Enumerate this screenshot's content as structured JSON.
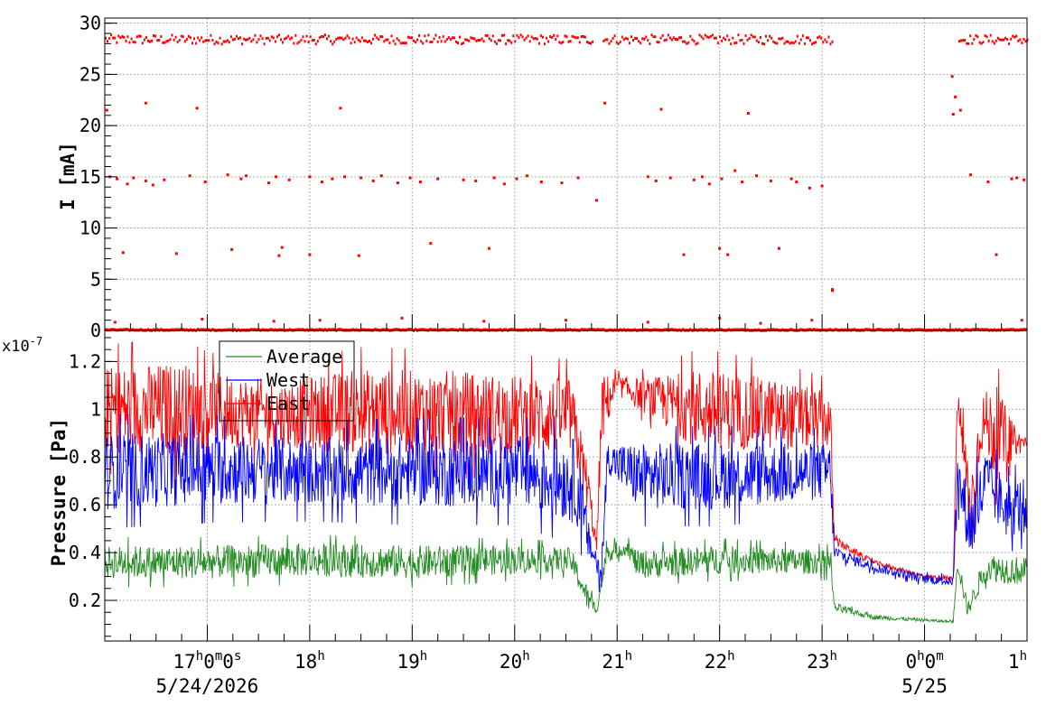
{
  "chart_data": [
    {
      "type": "scatter",
      "title": "",
      "ylabel": "I [mA]",
      "ylim": [
        0,
        30.5
      ],
      "yticks": [
        "0",
        "5",
        "10",
        "15",
        "20",
        "25",
        "30"
      ],
      "grid": true,
      "series": [
        {
          "color": "#ff0000",
          "bands": [
            {
              "level": 28.4,
              "spread": 0.45,
              "segments": [
                [
                  16.0,
                  20.76
                ],
                [
                  20.86,
                  23.1
                ],
                [
                  24.33,
                  25.0
                ]
              ]
            },
            {
              "level": 0.05,
              "spread": 0.05,
              "segments": [
                [
                  16.0,
                  25.0
                ]
              ]
            }
          ],
          "points": [
            [
              16.02,
              21.5
            ],
            [
              16.05,
              15.0
            ],
            [
              16.12,
              14.8
            ],
            [
              16.18,
              7.6
            ],
            [
              16.22,
              14.3
            ],
            [
              16.28,
              14.9
            ],
            [
              16.4,
              14.6
            ],
            [
              16.47,
              14.2
            ],
            [
              16.4,
              22.2
            ],
            [
              16.58,
              14.7
            ],
            [
              16.7,
              7.5
            ],
            [
              16.83,
              15.1
            ],
            [
              16.9,
              21.7
            ],
            [
              16.98,
              14.5
            ],
            [
              17.2,
              15.2
            ],
            [
              17.24,
              7.9
            ],
            [
              17.33,
              14.8
            ],
            [
              17.38,
              15.1
            ],
            [
              17.6,
              14.4
            ],
            [
              17.67,
              15.0
            ],
            [
              17.7,
              7.3
            ],
            [
              17.73,
              8.1
            ],
            [
              17.8,
              14.7
            ],
            [
              18.0,
              7.4
            ],
            [
              18.0,
              15.0
            ],
            [
              18.12,
              14.5
            ],
            [
              18.22,
              14.8
            ],
            [
              18.3,
              21.7
            ],
            [
              18.34,
              15.0
            ],
            [
              18.48,
              7.3
            ],
            [
              18.5,
              14.9
            ],
            [
              18.62,
              14.6
            ],
            [
              18.7,
              15.1
            ],
            [
              18.86,
              14.4
            ],
            [
              18.98,
              14.9
            ],
            [
              19.08,
              14.5
            ],
            [
              19.18,
              8.5
            ],
            [
              19.25,
              14.8
            ],
            [
              19.5,
              14.7
            ],
            [
              19.62,
              14.6
            ],
            [
              19.75,
              8.0
            ],
            [
              19.8,
              14.9
            ],
            [
              19.9,
              14.3
            ],
            [
              20.02,
              14.8
            ],
            [
              20.12,
              15.1
            ],
            [
              20.26,
              14.5
            ],
            [
              20.46,
              14.4
            ],
            [
              20.62,
              14.9
            ],
            [
              20.88,
              22.2
            ],
            [
              20.8,
              12.7
            ],
            [
              21.3,
              15.0
            ],
            [
              21.38,
              14.6
            ],
            [
              21.43,
              21.6
            ],
            [
              21.52,
              14.9
            ],
            [
              21.65,
              7.4
            ],
            [
              21.75,
              14.7
            ],
            [
              21.83,
              15.0
            ],
            [
              21.9,
              14.3
            ],
            [
              22.02,
              14.8
            ],
            [
              22.0,
              8.0
            ],
            [
              22.08,
              7.4
            ],
            [
              22.15,
              15.6
            ],
            [
              22.22,
              14.5
            ],
            [
              22.28,
              21.2
            ],
            [
              22.36,
              15.1
            ],
            [
              22.5,
              14.6
            ],
            [
              22.58,
              8.0
            ],
            [
              22.7,
              14.8
            ],
            [
              22.75,
              14.5
            ],
            [
              22.88,
              13.9
            ],
            [
              23.0,
              14.1
            ],
            [
              23.1,
              4.0
            ],
            [
              23.1,
              3.9
            ],
            [
              24.27,
              24.8
            ],
            [
              24.3,
              22.8
            ],
            [
              24.28,
              21.1
            ],
            [
              24.35,
              21.5
            ],
            [
              24.45,
              15.2
            ],
            [
              24.7,
              7.4
            ],
            [
              24.62,
              14.5
            ],
            [
              24.85,
              14.8
            ],
            [
              24.9,
              14.9
            ],
            [
              24.97,
              14.7
            ],
            [
              16.1,
              0.8
            ],
            [
              16.95,
              1.1
            ],
            [
              17.65,
              0.9
            ],
            [
              18.1,
              1.0
            ],
            [
              18.9,
              1.2
            ],
            [
              19.7,
              0.9
            ],
            [
              20.5,
              1.0
            ],
            [
              21.3,
              0.8
            ],
            [
              22.0,
              1.2
            ],
            [
              22.4,
              0.7
            ],
            [
              22.9,
              1.0
            ],
            [
              24.95,
              1.0
            ]
          ]
        }
      ]
    },
    {
      "type": "line",
      "title": "",
      "ylabel": "Pressure [Pa]",
      "ylim": [
        0.03,
        1.33
      ],
      "y_multiplier": "x10",
      "y_exponent": "-7",
      "yticks": [
        "0.2",
        "0.4",
        "0.6",
        "0.8",
        "1",
        "1.2"
      ],
      "grid": true,
      "legend": "top-left",
      "series": [
        {
          "name": "East",
          "color": "#ff0000",
          "anchors": [
            [
              16.0,
              1.0,
              0.18
            ],
            [
              16.75,
              1.0,
              0.2
            ],
            [
              17.0,
              1.0,
              0.16
            ],
            [
              17.7,
              0.98,
              0.14
            ],
            [
              18.5,
              0.99,
              0.18
            ],
            [
              19.5,
              0.98,
              0.18
            ],
            [
              20.55,
              0.97,
              0.16
            ],
            [
              20.72,
              0.66,
              0.1
            ],
            [
              20.8,
              0.42,
              0.03
            ],
            [
              20.85,
              1.0,
              0.15
            ],
            [
              21.0,
              1.1,
              0.04
            ],
            [
              21.3,
              1.05,
              0.08
            ],
            [
              21.8,
              1.0,
              0.17
            ],
            [
              22.5,
              0.98,
              0.15
            ],
            [
              23.08,
              0.95,
              0.12
            ],
            [
              23.12,
              0.45,
              0.02
            ],
            [
              23.5,
              0.36,
              0.01
            ],
            [
              24.0,
              0.3,
              0.01
            ],
            [
              24.28,
              0.29,
              0.01
            ],
            [
              24.32,
              1.05,
              0.06
            ],
            [
              24.45,
              0.56,
              0.18
            ],
            [
              24.55,
              0.95,
              0.12
            ],
            [
              24.7,
              0.9,
              0.2
            ],
            [
              24.9,
              0.86,
              0.05
            ],
            [
              25.0,
              0.86,
              0.04
            ]
          ]
        },
        {
          "name": "West",
          "color": "#0000ff",
          "anchors": [
            [
              16.0,
              0.74,
              0.16
            ],
            [
              17.0,
              0.75,
              0.15
            ],
            [
              18.0,
              0.74,
              0.14
            ],
            [
              19.0,
              0.74,
              0.15
            ],
            [
              20.0,
              0.74,
              0.15
            ],
            [
              20.6,
              0.7,
              0.18
            ],
            [
              20.72,
              0.45,
              0.08
            ],
            [
              20.85,
              0.3,
              0.06
            ],
            [
              20.9,
              0.8,
              0.06
            ],
            [
              21.2,
              0.72,
              0.14
            ],
            [
              22.0,
              0.72,
              0.14
            ],
            [
              23.08,
              0.74,
              0.12
            ],
            [
              23.12,
              0.4,
              0.03
            ],
            [
              23.5,
              0.34,
              0.02
            ],
            [
              24.0,
              0.29,
              0.02
            ],
            [
              24.28,
              0.28,
              0.02
            ],
            [
              24.32,
              0.72,
              0.1
            ],
            [
              24.45,
              0.5,
              0.15
            ],
            [
              24.6,
              0.7,
              0.14
            ],
            [
              24.8,
              0.58,
              0.12
            ],
            [
              25.0,
              0.6,
              0.12
            ]
          ]
        },
        {
          "name": "Average",
          "color": "#228b22",
          "anchors": [
            [
              16.0,
              0.36,
              0.07
            ],
            [
              17.0,
              0.36,
              0.07
            ],
            [
              18.0,
              0.37,
              0.07
            ],
            [
              19.0,
              0.36,
              0.07
            ],
            [
              20.0,
              0.37,
              0.06
            ],
            [
              20.55,
              0.37,
              0.05
            ],
            [
              20.72,
              0.2,
              0.05
            ],
            [
              20.8,
              0.16,
              0.02
            ],
            [
              20.9,
              0.4,
              0.04
            ],
            [
              21.1,
              0.42,
              0.03
            ],
            [
              21.2,
              0.35,
              0.06
            ],
            [
              22.0,
              0.37,
              0.06
            ],
            [
              23.08,
              0.36,
              0.05
            ],
            [
              23.12,
              0.17,
              0.02
            ],
            [
              23.5,
              0.13,
              0.01
            ],
            [
              24.28,
              0.11,
              0.005
            ],
            [
              24.32,
              0.37,
              0.05
            ],
            [
              24.42,
              0.16,
              0.03
            ],
            [
              24.6,
              0.34,
              0.06
            ],
            [
              25.0,
              0.32,
              0.06
            ]
          ]
        }
      ]
    }
  ],
  "time_axis": {
    "range": [
      16.0,
      25.0
    ],
    "major": [
      {
        "t": 17.0,
        "hour": "17",
        "sup1": "h",
        "min": "0",
        "sup2": "m",
        "sec": "0",
        "sup3": "s"
      },
      {
        "t": 18.0,
        "hour": "18",
        "sup1": "h"
      },
      {
        "t": 19.0,
        "hour": "19",
        "sup1": "h"
      },
      {
        "t": 20.0,
        "hour": "20",
        "sup1": "h"
      },
      {
        "t": 21.0,
        "hour": "21",
        "sup1": "h"
      },
      {
        "t": 22.0,
        "hour": "22",
        "sup1": "h"
      },
      {
        "t": 23.0,
        "hour": "23",
        "sup1": "h"
      },
      {
        "t": 24.0,
        "hour": "0",
        "sup1": "h",
        "min": "0",
        "sup2": "m"
      },
      {
        "t": 25.0,
        "hour": "1",
        "sup1": "h"
      }
    ],
    "dates": [
      {
        "t": 17.0,
        "label": "5/24/2026"
      },
      {
        "t": 24.0,
        "label": "5/25"
      }
    ]
  }
}
